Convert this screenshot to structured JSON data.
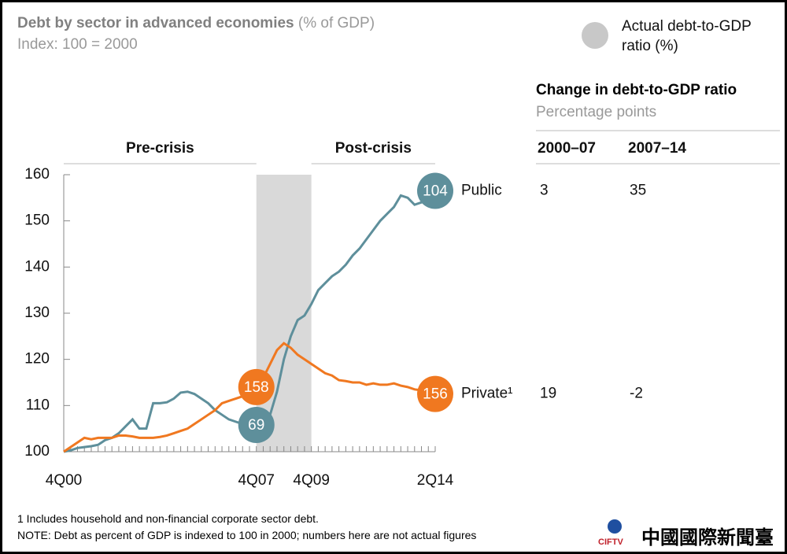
{
  "chart_data": {
    "type": "line",
    "title": "Debt by sector in advanced economies",
    "title_unit": "(% of GDP)",
    "subtitle": "Index: 100 = 2000",
    "legend_label": "Actual debt-to-GDP ratio (%)",
    "categories": [
      "4Q00",
      null,
      null,
      null,
      null,
      null,
      null,
      null,
      null,
      null,
      null,
      null,
      null,
      null,
      null,
      null,
      null,
      null,
      null,
      null,
      null,
      null,
      null,
      null,
      null,
      null,
      null,
      null,
      "4Q07",
      null,
      null,
      null,
      null,
      null,
      null,
      null,
      "4Q09",
      null,
      null,
      null,
      null,
      null,
      null,
      null,
      null,
      null,
      null,
      null,
      null,
      null,
      null,
      null,
      null,
      null,
      "2Q14"
    ],
    "shaded_range": [
      "4Q07",
      "4Q09"
    ],
    "sections": [
      {
        "label": "Pre-crisis",
        "from": "4Q00",
        "to": "4Q07"
      },
      {
        "label": "Post-crisis",
        "from": "4Q09",
        "to": "2Q14"
      }
    ],
    "ylim": [
      100,
      160
    ],
    "yticks": [
      100,
      110,
      120,
      130,
      140,
      150,
      160
    ],
    "series": [
      {
        "name": "Public",
        "color": "#5e8f9b",
        "values": [
          100,
          100.3,
          100.8,
          101,
          101.2,
          101.5,
          102.5,
          103,
          104,
          105.5,
          107,
          105,
          105,
          110.5,
          110.5,
          110.7,
          111.5,
          112.8,
          113,
          112.5,
          111.5,
          110.5,
          109,
          108,
          107,
          106.5,
          106,
          105.8,
          105.8,
          106.5,
          108,
          113,
          120,
          125,
          128.5,
          129.5,
          132,
          135,
          136.5,
          138,
          139,
          140.5,
          142.5,
          144,
          146,
          148,
          150,
          151.5,
          153,
          155.5,
          155,
          153.5,
          154,
          155.5,
          156.5
        ],
        "callouts": [
          {
            "category": "4Q07",
            "value": 69
          },
          {
            "category": "2Q14",
            "value": 104
          }
        ]
      },
      {
        "name": "Private¹",
        "color": "#f07820",
        "values": [
          100,
          101,
          102,
          103,
          102.7,
          103,
          103,
          103,
          103.5,
          103.5,
          103.3,
          103,
          103,
          103,
          103.2,
          103.5,
          104,
          104.5,
          105,
          106,
          107,
          108,
          109,
          110.5,
          111,
          111.5,
          112,
          113,
          114,
          116,
          119,
          122,
          123.5,
          122.5,
          121,
          120,
          119,
          118,
          117,
          116.5,
          115.5,
          115.3,
          115,
          115,
          114.5,
          114.8,
          114.5,
          114.5,
          114.8,
          114.3,
          114,
          113.5,
          113.3,
          113,
          112.5
        ],
        "callouts": [
          {
            "category": "4Q07",
            "value": 158
          },
          {
            "category": "2Q14",
            "value": 156
          }
        ]
      }
    ],
    "table": {
      "title": "Change in debt-to-GDP ratio",
      "subtitle": "Percentage points",
      "columns": [
        "2000–07",
        "2007–14"
      ],
      "rows": [
        [
          3,
          35
        ],
        [
          19,
          -2
        ]
      ]
    },
    "footnotes": [
      "1 Includes household and non-financial corporate sector debt.",
      "NOTE: Debt as percent of GDP is indexed to 100 in 2000; numbers here are not actual figures"
    ],
    "watermark_logo": "CIFTV",
    "watermark": "中國國際新聞臺"
  }
}
